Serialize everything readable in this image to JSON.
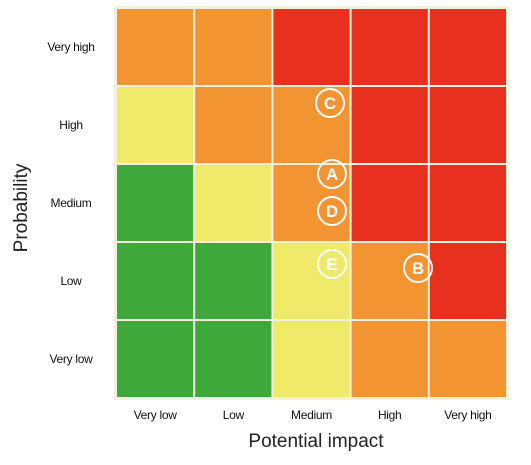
{
  "chart_data": {
    "type": "heatmap",
    "title": "",
    "xlabel": "Potential impact",
    "ylabel": "Probability",
    "x_categories": [
      "Very low",
      "Low",
      "Medium",
      "High",
      "Very high"
    ],
    "y_categories": [
      "Very high",
      "High",
      "Medium",
      "Low",
      "Very low"
    ],
    "cell_levels": [
      [
        "orange",
        "orange",
        "red",
        "red",
        "red"
      ],
      [
        "yellow",
        "orange",
        "orange",
        "red",
        "red"
      ],
      [
        "green",
        "yellow",
        "orange",
        "red",
        "red"
      ],
      [
        "green",
        "green",
        "yellow",
        "orange",
        "red"
      ],
      [
        "green",
        "green",
        "yellow",
        "orange",
        "orange"
      ]
    ],
    "colors": {
      "green": "#3ea83b",
      "yellow": "#f0ea6a",
      "orange": "#f39433",
      "red": "#e8301f",
      "grid": "#f3f0dd"
    },
    "markers": [
      {
        "label": "C",
        "impact": "Medium",
        "probability": "High"
      },
      {
        "label": "A",
        "impact": "Medium",
        "probability": "Medium"
      },
      {
        "label": "D",
        "impact": "Medium",
        "probability": "Medium"
      },
      {
        "label": "E",
        "impact": "Medium",
        "probability": "Low"
      },
      {
        "label": "B",
        "impact": "High",
        "probability": "Low"
      }
    ],
    "grid": true,
    "legend": "none"
  }
}
